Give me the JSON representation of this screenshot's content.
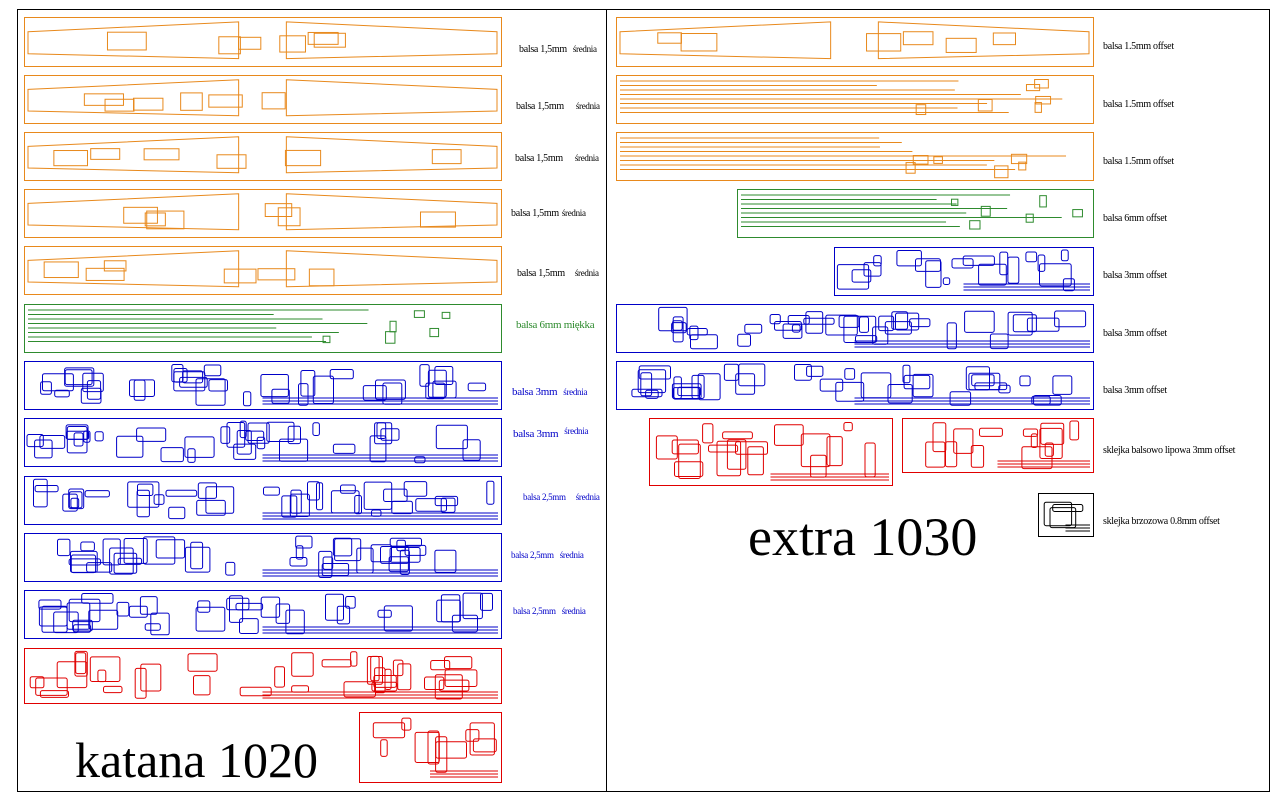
{
  "colors": {
    "balsa_1_5": "#e8891c",
    "balsa_6": "#2e8b2e",
    "balsa_3": "#0000c8",
    "plywood_3": "#e00000",
    "plywood_0_8": "#000000",
    "text": "#000000"
  },
  "katana": {
    "title": "katana 1020",
    "sheets": [
      {
        "material": "balsa 1,5mm",
        "quality": "średnia",
        "color": "#e8891c"
      },
      {
        "material": "balsa 1,5mm",
        "quality": "średnia",
        "color": "#e8891c"
      },
      {
        "material": "balsa 1,5mm",
        "quality": "średnia",
        "color": "#e8891c"
      },
      {
        "material": "balsa 1,5mm",
        "quality": "średnia",
        "color": "#e8891c"
      },
      {
        "material": "balsa 1,5mm",
        "quality": "średnia",
        "color": "#e8891c"
      },
      {
        "material": "balsa 6mm miękka",
        "quality": "",
        "color": "#2e8b2e"
      },
      {
        "material": "balsa 3mm",
        "quality": "średnia",
        "color": "#0000c8"
      },
      {
        "material": "balsa 3mm",
        "quality": "średnia",
        "color": "#0000c8"
      },
      {
        "material": "balsa 2,5mm",
        "quality": "średnia",
        "color": "#0000c8"
      },
      {
        "material": "balsa 2,5mm",
        "quality": "średnia",
        "color": "#0000c8"
      },
      {
        "material": "balsa 2,5mm",
        "quality": "średnia",
        "color": "#0000c8"
      },
      {
        "material": "",
        "quality": "",
        "color": "#e00000"
      },
      {
        "material": "",
        "quality": "",
        "color": "#e00000"
      }
    ]
  },
  "extra": {
    "title": "extra 1030",
    "sheets": [
      {
        "material": "balsa 1.5mm offset",
        "color": "#e8891c"
      },
      {
        "material": "balsa 1.5mm offset",
        "color": "#e8891c"
      },
      {
        "material": "balsa 1.5mm offset",
        "color": "#e8891c"
      },
      {
        "material": "balsa 6mm offset",
        "color": "#2e8b2e"
      },
      {
        "material": "balsa 3mm offset",
        "color": "#0000c8"
      },
      {
        "material": "balsa 3mm offset",
        "color": "#0000c8"
      },
      {
        "material": "balsa 3mm offset",
        "color": "#0000c8"
      },
      {
        "material": "sklejka balsowo lipowa 3mm offset",
        "color": "#e00000"
      },
      {
        "material": "",
        "color": "#e00000"
      },
      {
        "material": "sklejka brzozowa 0.8mm offset",
        "color": "#000000"
      }
    ]
  }
}
